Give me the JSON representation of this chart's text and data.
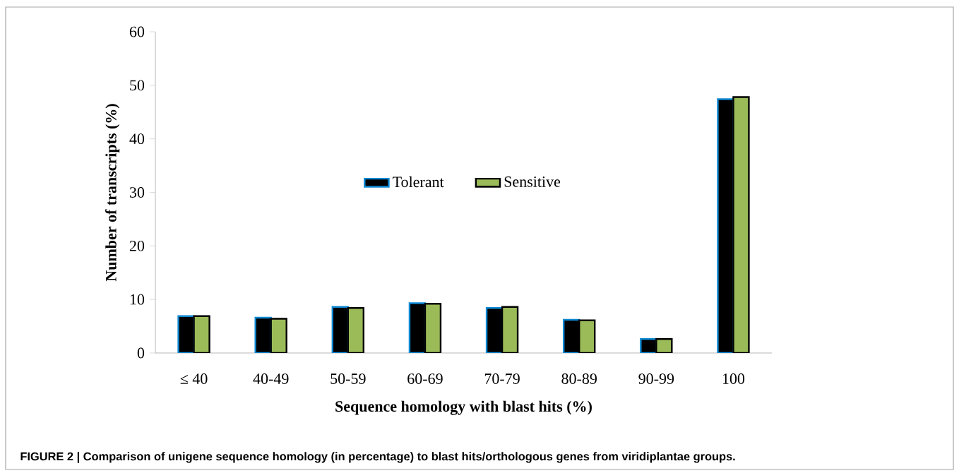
{
  "chart_data": {
    "type": "bar",
    "xlabel": "Sequence homology with blast hits (%)",
    "ylabel": "Number of transcripts (%)",
    "categories": [
      "≤ 40",
      "40-49",
      "50-59",
      "60-69",
      "70-79",
      "80-89",
      "90-99",
      "100"
    ],
    "series": [
      {
        "name": "Tolerant",
        "color": "#000000",
        "values": [
          6.9,
          6.6,
          8.6,
          9.3,
          8.4,
          6.2,
          2.6,
          47.4
        ]
      },
      {
        "name": "Sensitive",
        "color": "#9bbb59",
        "values": [
          6.9,
          6.4,
          8.4,
          9.2,
          8.6,
          6.1,
          2.6,
          47.8
        ]
      }
    ],
    "ylim": [
      0,
      60
    ],
    "yticks": [
      0,
      10,
      20,
      30,
      40,
      50,
      60
    ],
    "legend": "center",
    "annotations": [
      "**FIGURE 2 | Comparison of unigene sequence homology (in percentage) to blast hits/orthologous genes from viridiplantae groups.**"
    ]
  }
}
